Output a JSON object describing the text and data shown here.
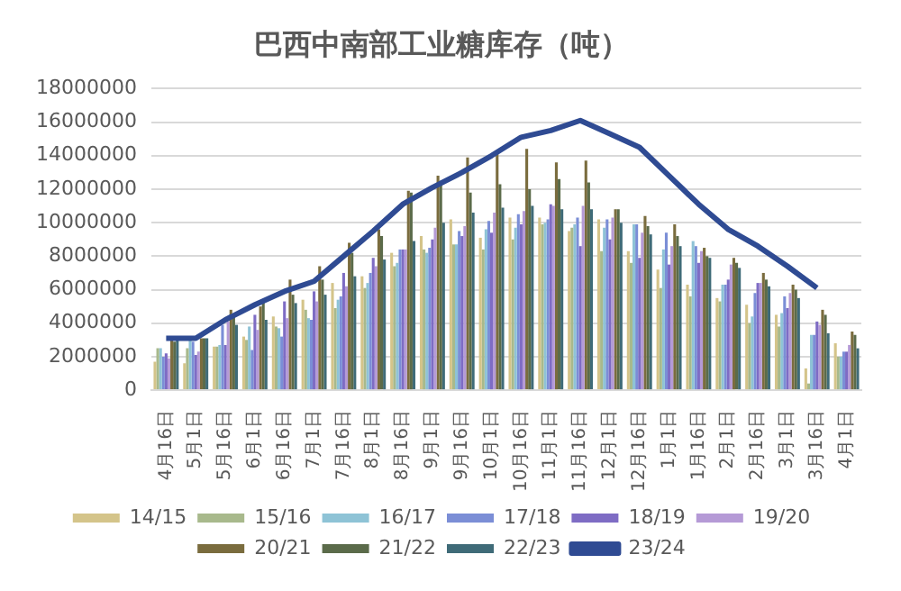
{
  "chart_data": {
    "type": "bar",
    "title": "巴西中南部工业糖库存（吨）",
    "categories": [
      "4月16日",
      "5月1日",
      "5月16日",
      "6月1日",
      "6月16日",
      "7月1日",
      "7月16日",
      "8月1日",
      "8月16日",
      "9月1日",
      "9月16日",
      "10月1日",
      "10月16日",
      "11月1日",
      "11月16日",
      "12月1日",
      "12月16日",
      "1月1日",
      "1月16日",
      "2月1日",
      "2月16日",
      "3月1日",
      "3月16日",
      "4月1日"
    ],
    "series": [
      {
        "name": "14/15",
        "color": "#d4c48a",
        "values": [
          1700000,
          1600000,
          2600000,
          3200000,
          4400000,
          5400000,
          6400000,
          6800000,
          8200000,
          9200000,
          10200000,
          9100000,
          10300000,
          10300000,
          9500000,
          10200000,
          8300000,
          7200000,
          6300000,
          5500000,
          5100000,
          4500000,
          1300000,
          2800000
        ]
      },
      {
        "name": "15/16",
        "color": "#a8b98c",
        "values": [
          2500000,
          2500000,
          2600000,
          3000000,
          3800000,
          4800000,
          4900000,
          6100000,
          7400000,
          8400000,
          8700000,
          8400000,
          9000000,
          9900000,
          9700000,
          8300000,
          7600000,
          6100000,
          5600000,
          5300000,
          4000000,
          3800000,
          400000,
          2000000
        ]
      },
      {
        "name": "16/17",
        "color": "#8ec3d6",
        "values": [
          2500000,
          3000000,
          2700000,
          3800000,
          3700000,
          4300000,
          5400000,
          6400000,
          7600000,
          8200000,
          8700000,
          9600000,
          9700000,
          10000000,
          9900000,
          9700000,
          9900000,
          8400000,
          8900000,
          6300000,
          4400000,
          4600000,
          3300000,
          2000000
        ]
      },
      {
        "name": "17/18",
        "color": "#7b8ed6",
        "values": [
          2000000,
          2900000,
          3900000,
          2400000,
          3200000,
          4200000,
          5600000,
          7000000,
          8400000,
          8500000,
          9500000,
          10100000,
          10500000,
          10200000,
          10300000,
          10200000,
          9900000,
          9400000,
          8600000,
          6300000,
          5800000,
          5600000,
          3300000,
          2300000
        ]
      },
      {
        "name": "18/19",
        "color": "#7e6cc4",
        "values": [
          2200000,
          2100000,
          2700000,
          4500000,
          5300000,
          5900000,
          7000000,
          7900000,
          8400000,
          9000000,
          9200000,
          9400000,
          9900000,
          11100000,
          8600000,
          9000000,
          7900000,
          7500000,
          7600000,
          6600000,
          6400000,
          4900000,
          4100000,
          2300000
        ]
      },
      {
        "name": "19/20",
        "color": "#b59ad6",
        "values": [
          1900000,
          2300000,
          4100000,
          3600000,
          4300000,
          5300000,
          6200000,
          7400000,
          8400000,
          9700000,
          9800000,
          10600000,
          10700000,
          11000000,
          11000000,
          10300000,
          9400000,
          8600000,
          8300000,
          7500000,
          6400000,
          5800000,
          3900000,
          2700000
        ]
      },
      {
        "name": "20/21",
        "color": "#7a6c3e",
        "values": [
          3000000,
          3100000,
          4800000,
          5000000,
          6600000,
          7400000,
          8800000,
          9600000,
          11900000,
          12800000,
          13900000,
          14200000,
          14400000,
          13600000,
          13700000,
          10800000,
          10400000,
          9900000,
          8500000,
          7900000,
          7000000,
          6300000,
          4800000,
          3500000
        ]
      },
      {
        "name": "21/22",
        "color": "#5b6b4a",
        "values": [
          2900000,
          3100000,
          4500000,
          5400000,
          5700000,
          6600000,
          8200000,
          9200000,
          11800000,
          12500000,
          11800000,
          12300000,
          12000000,
          12600000,
          12400000,
          10800000,
          9800000,
          9200000,
          8000000,
          7600000,
          6600000,
          6000000,
          4500000,
          3300000
        ]
      },
      {
        "name": "22/23",
        "color": "#3f6b78",
        "values": [
          3000000,
          3100000,
          3900000,
          4200000,
          5200000,
          5700000,
          6800000,
          7800000,
          8900000,
          10000000,
          10600000,
          10900000,
          11000000,
          10800000,
          10800000,
          10000000,
          9300000,
          8600000,
          7900000,
          7300000,
          6200000,
          5500000,
          3400000,
          2500000
        ]
      },
      {
        "name": "23/24",
        "type": "line",
        "color": "#2f4b93",
        "values": [
          3100000,
          3100000,
          4200000,
          5100000,
          5900000,
          6500000,
          8000000,
          9500000,
          11100000,
          12100000,
          13000000,
          14000000,
          15100000,
          15500000,
          16100000,
          15300000,
          14500000,
          12800000,
          11100000,
          9600000,
          8600000,
          7400000,
          6100000,
          null
        ]
      }
    ],
    "ylim": [
      0,
      18000000
    ],
    "yticks": [
      0,
      2000000,
      4000000,
      6000000,
      8000000,
      10000000,
      12000000,
      14000000,
      16000000,
      18000000
    ],
    "grid": "y",
    "legend": "bottom",
    "marker": "none"
  }
}
